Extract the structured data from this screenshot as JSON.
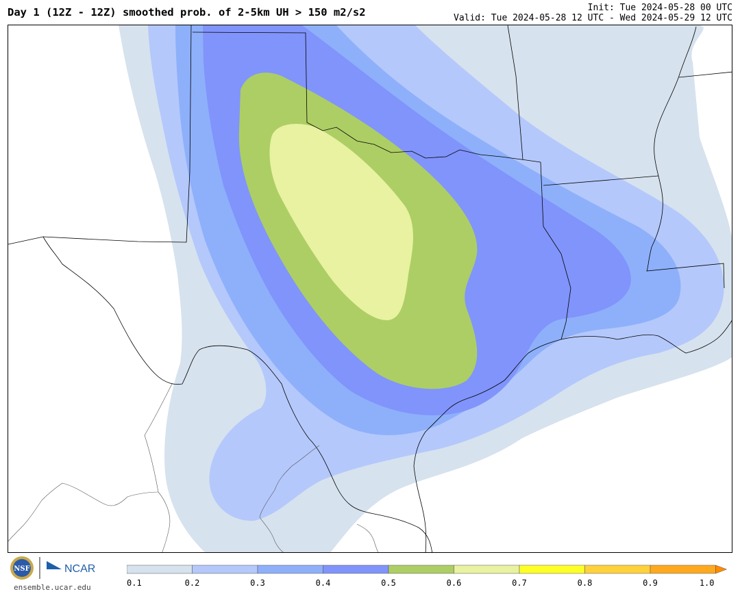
{
  "header": {
    "title": "Day 1 (12Z - 12Z) smoothed prob. of 2-5km UH > 150 m2/s2",
    "init": "Init: Tue 2024-05-28 00 UTC",
    "valid": "Valid: Tue 2024-05-28 12 UTC - Wed 2024-05-29 12 UTC"
  },
  "footer": {
    "url": "ensemble.ucar.edu",
    "nsf_logo_text": "NSF",
    "ncar_logo_text": "NCAR"
  },
  "colorbar": {
    "ticks": [
      "0.1",
      "0.2",
      "0.3",
      "0.4",
      "0.5",
      "0.6",
      "0.7",
      "0.8",
      "0.9",
      "1.0"
    ],
    "colors": [
      "#d6e2ee",
      "#b4c8fb",
      "#8eb0fb",
      "#8094fb",
      "#adce64",
      "#e8f2a0",
      "#ffff28",
      "#ffd23c",
      "#ffa91e"
    ],
    "over_color": "#ff8c00"
  },
  "map": {
    "fill_levels": [
      {
        "min": 0.1,
        "color": "#d6e2ee"
      },
      {
        "min": 0.2,
        "color": "#b4c8fb"
      },
      {
        "min": 0.3,
        "color": "#8eb0fb"
      },
      {
        "min": 0.4,
        "color": "#8094fb"
      },
      {
        "min": 0.5,
        "color": "#adce64"
      },
      {
        "min": 0.6,
        "color": "#e8f2a0"
      }
    ],
    "boundary_color": "#000000"
  }
}
